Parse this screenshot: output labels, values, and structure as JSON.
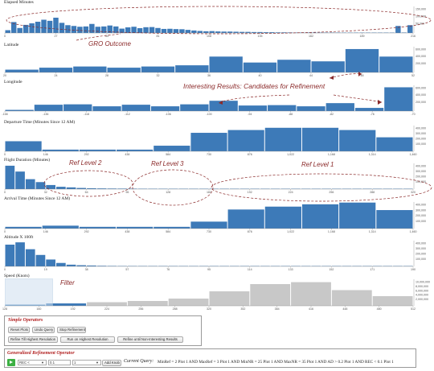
{
  "colors": {
    "bar": "#3d7ab8",
    "gray_bar": "#c8c8c8",
    "annotation": "#8b2a2a",
    "filter_box": "#cfe0f0"
  },
  "annotations": {
    "gro": "GRO Outcome",
    "interesting": "Interesting Results: Candidates for Refinement",
    "ref2": "Ref Level 2",
    "ref3": "Ref Level 3",
    "ref1": "Ref Level  1",
    "filter": "Filter"
  },
  "panels": [
    {
      "title": "Elapsed Minutes",
      "x_ticks": [
        "0",
        "27",
        "54",
        "81",
        "108",
        "135",
        "162",
        "189",
        "216"
      ],
      "y_ticks": [
        "150,000",
        "100,000",
        "50,000"
      ],
      "y_max": 170000,
      "values": [
        18000,
        70000,
        32000,
        52000,
        62000,
        72000,
        85000,
        78000,
        98000,
        65000,
        50000,
        45000,
        40000,
        42000,
        58000,
        40000,
        42000,
        48000,
        42000,
        28000,
        36000,
        40000,
        31000,
        37000,
        38000,
        32000,
        26000,
        27000,
        25000,
        24000,
        20000,
        16000,
        13000,
        11000,
        12000,
        10000,
        9000,
        9000,
        8000,
        7000,
        7000,
        6000,
        6000,
        5000,
        5000,
        4000,
        4000,
        3500,
        3000,
        3000,
        3000,
        2500,
        2500,
        2000,
        2000,
        2000,
        1500,
        1500,
        1500,
        1500,
        1200,
        1000,
        1000,
        1000,
        1000,
        45000,
        3000,
        50000
      ]
    },
    {
      "title": "Latitude",
      "x_ticks": [
        "20",
        "24",
        "28",
        "32",
        "36",
        "40",
        "44",
        "48",
        "52"
      ],
      "y_ticks": [
        "600,000",
        "400,000",
        "200,000"
      ],
      "y_max": 650000,
      "values": [
        70000,
        120000,
        150000,
        120000,
        150000,
        180000,
        400000,
        250000,
        320000,
        280000,
        590000,
        400000
      ]
    },
    {
      "title": "Longitude",
      "x_ticks": [
        "-158",
        "-136",
        "-118",
        "-112",
        "-106",
        "-100",
        "-94",
        "-88",
        "-82",
        "-76",
        "-70"
      ],
      "y_ticks": [
        "600,000",
        "400,000",
        "200,000"
      ],
      "y_max": 650000,
      "values": [
        30000,
        160000,
        170000,
        120000,
        160000,
        120000,
        170000,
        260000,
        140000,
        150000,
        120000,
        200000,
        80000,
        600000
      ]
    },
    {
      "title": "Departure Time (Minutes Since 12 AM)",
      "x_ticks": [
        "0",
        "146",
        "292",
        "438",
        "584",
        "730",
        "876",
        "1,022",
        "1,168",
        "1,314",
        "1,460"
      ],
      "y_ticks": [
        "400,000",
        "300,000",
        "200,000",
        "100,000"
      ],
      "y_max": 460000,
      "values": [
        180000,
        30000,
        30000,
        30000,
        100000,
        330000,
        380000,
        420000,
        420000,
        380000,
        250000
      ]
    },
    {
      "title": "Flight Duration (Minutes)",
      "x_ticks": [
        "0",
        "32",
        "64",
        "96",
        "128",
        "160",
        "192",
        "224",
        "256",
        "288",
        "320"
      ],
      "y_ticks": [
        "400,000",
        "300,000",
        "200,000",
        "100,000"
      ],
      "y_max": 440000,
      "values": [
        400000,
        300000,
        170000,
        120000,
        70000,
        40000,
        30000,
        20000,
        15000,
        12000,
        10000,
        9000,
        8000,
        7000,
        6000,
        6000,
        5000,
        5000,
        4000,
        4000,
        4000,
        3000,
        3000,
        3000,
        3000,
        2500,
        2500,
        2000,
        2000,
        2000,
        2000,
        1500,
        1500,
        1500,
        1500,
        1200,
        1000,
        1000,
        1000,
        1000
      ]
    },
    {
      "title": "Arrival Time (Minutes Since 12 AM)",
      "x_ticks": [
        "0",
        "146",
        "292",
        "438",
        "584",
        "730",
        "876",
        "1,022",
        "1,168",
        "1,314",
        "1,460"
      ],
      "y_ticks": [
        "400,000",
        "300,000",
        "200,000",
        "100,000"
      ],
      "y_max": 460000,
      "values": [
        30000,
        50000,
        30000,
        30000,
        30000,
        120000,
        330000,
        380000,
        420000,
        450000,
        320000
      ]
    },
    {
      "title": "Altitude X 100ft",
      "x_ticks": [
        "0",
        "19",
        "38",
        "57",
        "76",
        "95",
        "114",
        "133",
        "152",
        "171",
        "190"
      ],
      "y_ticks": [
        "400,000",
        "300,000",
        "200,000",
        "100,000"
      ],
      "y_max": 450000,
      "values": [
        380000,
        420000,
        300000,
        200000,
        120000,
        60000,
        30000,
        20000,
        15000,
        10000,
        8000,
        6000,
        5000,
        4000,
        3000,
        3000,
        2500,
        2000,
        2000,
        2000,
        1500,
        1500,
        1500,
        1500,
        1200,
        1000,
        1000,
        1000,
        1000,
        1000,
        800,
        800,
        800,
        800,
        700,
        600,
        600,
        600,
        600,
        500
      ]
    },
    {
      "title": "Speed (Knots)",
      "x_ticks": [
        "128",
        "160",
        "192",
        "224",
        "256",
        "288",
        "320",
        "352",
        "384",
        "416",
        "448",
        "480",
        "512"
      ],
      "y_ticks": [
        "10,000,000",
        "8,000,000",
        "6,000,000",
        "4,000,000",
        "2,000,000"
      ],
      "y_max": 11000000,
      "values": [
        500000,
        1000000,
        1500000,
        2000000,
        3000000,
        6000000,
        9000000,
        9800000,
        6500000,
        4000000
      ]
    }
  ],
  "simple_operators": {
    "title": "Simple Operators",
    "buttons": [
      "Reset Plots",
      "Undo Query",
      "Stop Refinement",
      "Refine Till Highest Resolution",
      "Run on Highest Resolution",
      "Refine until Non-Interesting Results"
    ]
  },
  "generalized": {
    "title": "Generalized Refinement Operator",
    "op_select": "REC <",
    "value_input": "0.1",
    "count_select": "1",
    "add_knob": "Add Knob",
    "current_label": "Current Query:",
    "current_query": "MinRef = 2 Plot 1 AND MaxRef = 3 Plot 1 AND MinNR = 25 Plot 1 AND MaxNR = 35 Plot 1 AND AD > 0.2 Plot 1 AND REC < 0.1 Plot 1"
  }
}
